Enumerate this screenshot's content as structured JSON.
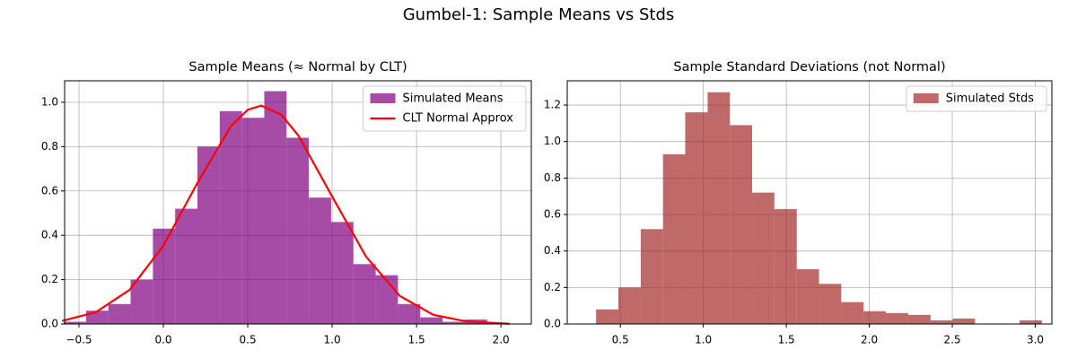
{
  "title": "Gumbel-1: Sample Means vs Stds",
  "chart_data": [
    {
      "type": "histogram",
      "title": "Sample Means (≈ Normal by CLT)",
      "name": "Simulated Means",
      "color": "purple",
      "alpha": 0.7,
      "bins": [
        -0.59,
        -0.458,
        -0.326,
        -0.194,
        -0.062,
        0.07,
        0.202,
        0.334,
        0.466,
        0.598,
        0.73,
        0.862,
        0.994,
        1.126,
        1.258,
        1.39,
        1.522,
        1.654,
        1.786,
        1.918,
        2.05
      ],
      "values": [
        0.01,
        0.06,
        0.09,
        0.2,
        0.43,
        0.52,
        0.8,
        0.96,
        0.93,
        1.05,
        0.84,
        0.57,
        0.46,
        0.27,
        0.22,
        0.09,
        0.03,
        0.01,
        0.02,
        0.005
      ],
      "curve": {
        "name": "CLT Normal Approx",
        "color": "red",
        "x": [
          -0.6,
          -0.4,
          -0.2,
          0,
          0.2,
          0.4,
          0.5,
          0.58,
          0.7,
          0.8,
          1.0,
          1.2,
          1.4,
          1.6,
          1.8,
          2.05
        ],
        "values": [
          0.014,
          0.053,
          0.154,
          0.353,
          0.634,
          0.892,
          0.966,
          0.985,
          0.943,
          0.85,
          0.575,
          0.305,
          0.127,
          0.041,
          0.011,
          0.001
        ]
      },
      "xlim": [
        -0.585,
        2.18
      ],
      "ylim": [
        0,
        1.097
      ],
      "xticks": [
        {
          "value": -0.5,
          "label": "−0.5"
        },
        {
          "value": 0,
          "label": "0.0"
        },
        0.5,
        {
          "value": 1,
          "label": "1.0"
        },
        1.5,
        {
          "value": 2,
          "label": "2.0"
        }
      ],
      "yticks": [
        {
          "value": 0,
          "label": "0.0"
        },
        0.2,
        0.4,
        0.6,
        0.8,
        {
          "value": 1,
          "label": "1.0"
        }
      ],
      "grid": true,
      "legend": "upper right"
    },
    {
      "type": "histogram",
      "title": "Sample Standard Deviations (not Normal)",
      "name": "Simulated Stds",
      "color": "brown",
      "alpha": 0.7,
      "bins": [
        0.354,
        0.488,
        0.623,
        0.757,
        0.891,
        1.026,
        1.16,
        1.294,
        1.428,
        1.563,
        1.697,
        1.831,
        1.966,
        2.1,
        2.234,
        2.369,
        2.503,
        2.637,
        2.771,
        2.906,
        3.04
      ],
      "values": [
        0.08,
        0.2,
        0.52,
        0.93,
        1.16,
        1.27,
        1.09,
        0.72,
        0.63,
        0.3,
        0.22,
        0.12,
        0.07,
        0.06,
        0.05,
        0.02,
        0.03,
        0,
        0,
        0.02
      ],
      "xlim": [
        0.18,
        3.1
      ],
      "ylim": [
        0,
        1.333
      ],
      "xticks": [
        0.5,
        {
          "value": 1,
          "label": "1.0"
        },
        1.5,
        {
          "value": 2,
          "label": "2.0"
        },
        2.5,
        {
          "value": 3,
          "label": "3.0"
        }
      ],
      "yticks": [
        {
          "value": 0,
          "label": "0.0"
        },
        0.2,
        0.4,
        0.6,
        0.8,
        {
          "value": 1,
          "label": "1.0"
        },
        1.2
      ],
      "grid": true,
      "legend": "upper right"
    }
  ]
}
